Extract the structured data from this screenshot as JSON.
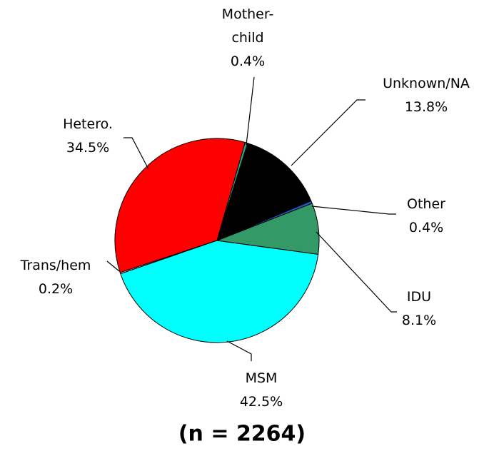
{
  "chart_data": {
    "type": "pie",
    "categories": [
      "Mother-child",
      "Unknown/NA",
      "Other",
      "IDU",
      "MSM",
      "Trans/hem",
      "Hetero."
    ],
    "values": [
      0.4,
      13.8,
      0.4,
      8.1,
      42.5,
      0.2,
      34.5
    ],
    "value_labels": [
      "0.4%",
      "13.8%",
      "0.4%",
      "8.1%",
      "42.5%",
      "0.2%",
      "34.5%"
    ],
    "colors": [
      "#1fae8a",
      "#000000",
      "#1f5fd0",
      "#339966",
      "#00ffff",
      "#ffb8ff",
      "#ff0000"
    ],
    "annotation": "(n = 2264)"
  }
}
